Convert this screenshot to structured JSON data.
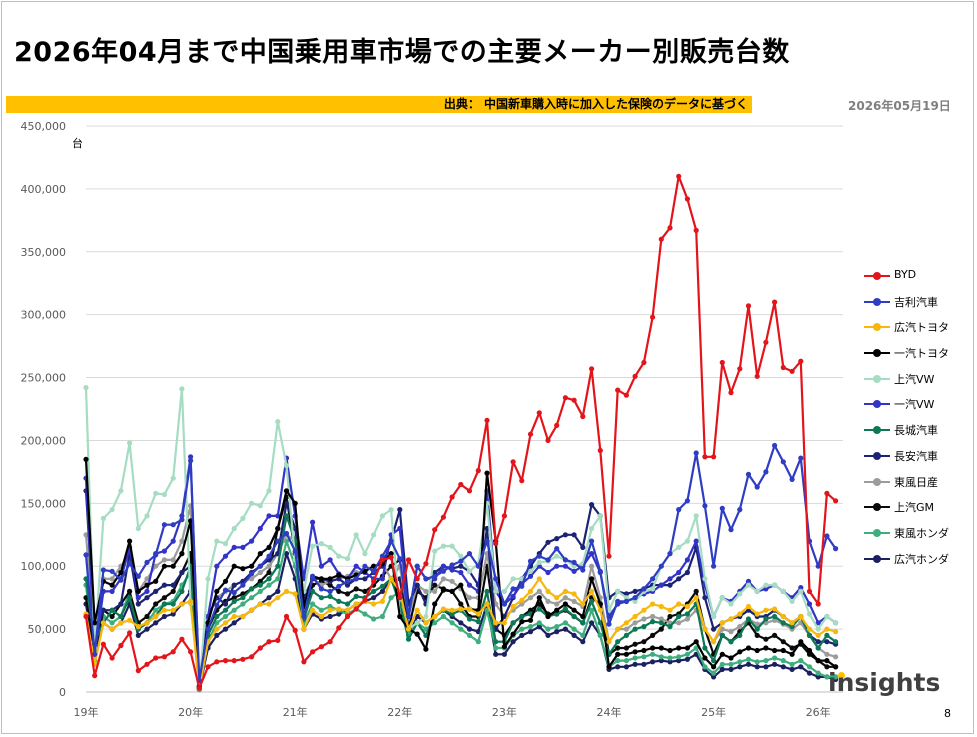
{
  "header": {
    "title": "2026年04月まで中国乗用車市場での主要メーカー別販売台数",
    "source": "出典： 中国新車購入時に加入した保険のデータに基づく",
    "date": "2026年05月19日",
    "page_number": "8"
  },
  "logo": {
    "text": "insights"
  },
  "chart_data": {
    "type": "line",
    "ylabel": "台",
    "ylim": [
      0,
      450000
    ],
    "yticks": [
      "0",
      "50,000",
      "100,000",
      "150,000",
      "200,000",
      "250,000",
      "300,000",
      "350,000",
      "400,000",
      "450,000"
    ],
    "xticks": [
      "19年",
      "20年",
      "21年",
      "22年",
      "23年",
      "24年",
      "25年",
      "26年"
    ],
    "x_start": "2019-01",
    "grid": "horizontal",
    "legend_position": "right",
    "series": [
      {
        "name": "BYD",
        "color": "#e3141a",
        "values": [
          60000,
          13000,
          38000,
          27000,
          37000,
          47000,
          17000,
          22000,
          27000,
          28000,
          32000,
          42000,
          32000,
          3000,
          20000,
          24000,
          25000,
          25000,
          26000,
          28000,
          35000,
          40000,
          41000,
          60000,
          49000,
          24000,
          32000,
          36000,
          40000,
          51000,
          60000,
          66000,
          73000,
          88000,
          105000,
          107000,
          75000,
          105000,
          90000,
          102000,
          129000,
          139000,
          155000,
          165000,
          160000,
          176000,
          216000,
          118000,
          140000,
          183000,
          168000,
          205000,
          222000,
          200000,
          212000,
          234000,
          232000,
          219000,
          257000,
          192000,
          108000,
          240000,
          236000,
          251000,
          262000,
          298000,
          360000,
          369000,
          410000,
          392000,
          367000,
          187000,
          187000,
          262000,
          238000,
          257000,
          307000,
          251000,
          278000,
          310000,
          258000,
          255000,
          263000,
          80000,
          70000,
          158000,
          152000
        ]
      },
      {
        "name": "吉利汽車",
        "color": "#2e3dc2",
        "values": [
          109000,
          30000,
          97000,
          96000,
          89000,
          102000,
          92000,
          103000,
          109000,
          133000,
          133000,
          137000,
          184000,
          9000,
          50000,
          69000,
          81000,
          79000,
          85000,
          94000,
          100000,
          108000,
          120000,
          126000,
          112000,
          60000,
          92000,
          82000,
          80000,
          84000,
          88000,
          90000,
          100000,
          96000,
          108000,
          120000,
          106000,
          60000,
          100000,
          90000,
          92000,
          96000,
          101000,
          104000,
          110000,
          100000,
          120000,
          90000,
          70000,
          82000,
          84000,
          104000,
          108000,
          105000,
          114000,
          105000,
          103000,
          97000,
          120000,
          96000,
          54000,
          72000,
          72000,
          75000,
          82000,
          90000,
          100000,
          110000,
          145000,
          152000,
          190000,
          148000,
          100000,
          146000,
          129000,
          145000,
          173000,
          163000,
          175000,
          196000,
          183000,
          169000,
          186000,
          120000,
          100000,
          124000,
          114000
        ]
      },
      {
        "name": "広汽トヨタ",
        "color": "#f7b80e",
        "values": [
          62000,
          22000,
          55000,
          50000,
          55000,
          57000,
          52000,
          55000,
          60000,
          65000,
          65000,
          70000,
          72000,
          3000,
          40000,
          50000,
          55000,
          60000,
          60000,
          65000,
          70000,
          70000,
          75000,
          80000,
          78000,
          50000,
          65000,
          60000,
          65000,
          66000,
          65000,
          70000,
          72000,
          70000,
          72000,
          90000,
          80000,
          50000,
          65000,
          55000,
          60000,
          66000,
          65000,
          66000,
          66000,
          62000,
          70000,
          55000,
          55000,
          68000,
          73000,
          80000,
          90000,
          80000,
          75000,
          80000,
          78000,
          70000,
          80000,
          65000,
          40000,
          50000,
          55000,
          60000,
          65000,
          70000,
          68000,
          65000,
          70000,
          68000,
          75000,
          50000,
          40000,
          55000,
          58000,
          62000,
          68000,
          62000,
          65000,
          66000,
          60000,
          55000,
          60000,
          50000,
          45000,
          50000,
          48000
        ]
      },
      {
        "name": "一汽トヨタ",
        "color": "#000000",
        "values": [
          185000,
          55000,
          88000,
          85000,
          95000,
          120000,
          80000,
          85000,
          88000,
          100000,
          100000,
          110000,
          136000,
          4000,
          55000,
          80000,
          88000,
          100000,
          98000,
          100000,
          110000,
          115000,
          130000,
          160000,
          150000,
          68000,
          92000,
          90000,
          90000,
          93000,
          90000,
          93000,
          96000,
          100000,
          102000,
          110000,
          60000,
          50000,
          46000,
          34000,
          70000,
          81000,
          80000,
          85000,
          66000,
          65000,
          174000,
          120000,
          36000,
          46000,
          56000,
          57000,
          75000,
          60000,
          65000,
          70000,
          65000,
          60000,
          90000,
          70000,
          20000,
          30000,
          30000,
          32000,
          33000,
          35000,
          35000,
          33000,
          35000,
          35000,
          40000,
          27000,
          20000,
          30000,
          27000,
          32000,
          35000,
          33000,
          35000,
          33000,
          33000,
          30000,
          40000,
          33000,
          25000,
          25000,
          20000
        ]
      },
      {
        "name": "上汽VW",
        "color": "#a6dcc2",
        "values": [
          242000,
          35000,
          138000,
          145000,
          160000,
          198000,
          130000,
          140000,
          158000,
          157000,
          170000,
          241000,
          70000,
          3000,
          90000,
          120000,
          118000,
          130000,
          138000,
          150000,
          148000,
          160000,
          215000,
          180000,
          105000,
          80000,
          116000,
          118000,
          115000,
          108000,
          106000,
          125000,
          110000,
          125000,
          140000,
          145000,
          60000,
          50000,
          55000,
          60000,
          112000,
          116000,
          116000,
          108000,
          96000,
          102000,
          150000,
          80000,
          80000,
          90000,
          90000,
          96000,
          103000,
          104000,
          108000,
          105000,
          100000,
          102000,
          130000,
          140000,
          65000,
          80000,
          75000,
          72000,
          80000,
          82000,
          100000,
          110000,
          115000,
          120000,
          140000,
          90000,
          60000,
          75000,
          70000,
          78000,
          85000,
          80000,
          85000,
          85000,
          80000,
          72000,
          80000,
          62000,
          50000,
          60000,
          55000
        ]
      },
      {
        "name": "一汽VW",
        "color": "#3333c8",
        "values": [
          170000,
          30000,
          80000,
          80000,
          90000,
          115000,
          75000,
          80000,
          110000,
          112000,
          120000,
          140000,
          187000,
          4000,
          60000,
          100000,
          108000,
          115000,
          115000,
          120000,
          130000,
          140000,
          140000,
          186000,
          140000,
          90000,
          135000,
          100000,
          105000,
          94000,
          90000,
          100000,
          95000,
          90000,
          90000,
          125000,
          130000,
          60000,
          100000,
          90000,
          90000,
          100000,
          97000,
          95000,
          85000,
          80000,
          160000,
          80000,
          70000,
          76000,
          86000,
          92000,
          100000,
          95000,
          100000,
          100000,
          96000,
          100000,
          110000,
          95000,
          60000,
          70000,
          72000,
          75000,
          78000,
          80000,
          85000,
          90000,
          95000,
          105000,
          120000,
          85000,
          60000,
          75000,
          72000,
          80000,
          88000,
          80000,
          82000,
          85000,
          80000,
          75000,
          83000,
          70000,
          55000,
          60000,
          55000
        ]
      },
      {
        "name": "長城汽車",
        "color": "#0d7855",
        "values": [
          90000,
          40000,
          55000,
          65000,
          60000,
          75000,
          50000,
          55000,
          60000,
          70000,
          70000,
          80000,
          100000,
          5000,
          45000,
          60000,
          65000,
          72000,
          75000,
          82000,
          85000,
          90000,
          100000,
          140000,
          120000,
          58000,
          80000,
          75000,
          76000,
          72000,
          70000,
          76000,
          75000,
          80000,
          84000,
          90000,
          70000,
          42000,
          55000,
          45000,
          60000,
          65000,
          62000,
          65000,
          58000,
          56000,
          80000,
          40000,
          40000,
          55000,
          60000,
          62000,
          66000,
          60000,
          62000,
          66000,
          60000,
          55000,
          72000,
          55000,
          30000,
          40000,
          45000,
          50000,
          52000,
          56000,
          55000,
          52000,
          60000,
          62000,
          70000,
          35000,
          25000,
          45000,
          40000,
          45000,
          58000,
          50000,
          58000,
          60000,
          55000,
          52000,
          60000,
          45000,
          35000,
          45000,
          40000
        ]
      },
      {
        "name": "長安汽車",
        "color": "#1c2373",
        "values": [
          160000,
          45000,
          65000,
          65000,
          70000,
          110000,
          70000,
          75000,
          80000,
          85000,
          85000,
          95000,
          100000,
          8000,
          60000,
          75000,
          70000,
          85000,
          88000,
          95000,
          100000,
          105000,
          110000,
          150000,
          130000,
          75000,
          90000,
          90000,
          88000,
          90000,
          85000,
          90000,
          90000,
          95000,
          100000,
          120000,
          145000,
          70000,
          85000,
          70000,
          95000,
          100000,
          98000,
          100000,
          96000,
          85000,
          130000,
          50000,
          60000,
          75000,
          90000,
          100000,
          110000,
          119000,
          122000,
          125000,
          125000,
          115000,
          149000,
          140000,
          75000,
          80000,
          78000,
          80000,
          82000,
          85000,
          85000,
          85000,
          90000,
          95000,
          115000,
          75000,
          50000,
          55000,
          58000,
          60000,
          65000,
          60000,
          60000,
          65000,
          60000,
          55000,
          60000,
          45000,
          40000,
          40000,
          38000
        ]
      },
      {
        "name": "東風日産",
        "color": "#9c9c9c",
        "values": [
          125000,
          40000,
          90000,
          90000,
          100000,
          110000,
          80000,
          90000,
          100000,
          105000,
          105000,
          120000,
          148000,
          5000,
          60000,
          75000,
          80000,
          85000,
          88000,
          90000,
          95000,
          100000,
          110000,
          125000,
          120000,
          68000,
          90000,
          85000,
          88000,
          90000,
          92000,
          95000,
          96000,
          100000,
          102000,
          90000,
          100000,
          60000,
          85000,
          80000,
          80000,
          90000,
          88000,
          82000,
          75000,
          75000,
          110000,
          70000,
          60000,
          65000,
          70000,
          75000,
          80000,
          72000,
          70000,
          75000,
          72000,
          68000,
          100000,
          75000,
          40000,
          50000,
          50000,
          55000,
          58000,
          60000,
          58000,
          55000,
          55000,
          58000,
          65000,
          50000,
          40000,
          50000,
          48000,
          52000,
          58000,
          54000,
          55000,
          57000,
          54000,
          50000,
          55000,
          45000,
          35000,
          30000,
          28000
        ]
      },
      {
        "name": "上汽GM",
        "color": "#0a0a0a",
        "values": [
          75000,
          30000,
          65000,
          60000,
          70000,
          80000,
          55000,
          60000,
          70000,
          75000,
          80000,
          95000,
          110000,
          3000,
          50000,
          65000,
          72000,
          75000,
          78000,
          82000,
          88000,
          95000,
          130000,
          155000,
          110000,
          60000,
          85000,
          88000,
          85000,
          80000,
          78000,
          82000,
          80000,
          85000,
          92000,
          100000,
          105000,
          50000,
          80000,
          75000,
          85000,
          82000,
          80000,
          70000,
          60000,
          60000,
          100000,
          50000,
          45000,
          55000,
          60000,
          65000,
          70000,
          62000,
          62000,
          65000,
          60000,
          55000,
          75000,
          70000,
          30000,
          35000,
          35000,
          38000,
          40000,
          45000,
          50000,
          60000,
          62000,
          70000,
          80000,
          50000,
          30000,
          45000,
          40000,
          48000,
          55000,
          45000,
          42000,
          45000,
          40000,
          35000,
          38000,
          30000,
          25000,
          20000,
          20000
        ]
      },
      {
        "name": "東風ホンダ",
        "color": "#3eae7e",
        "values": [
          85000,
          25000,
          60000,
          55000,
          60000,
          80000,
          50000,
          55000,
          65000,
          70000,
          72000,
          85000,
          95000,
          2000,
          40000,
          55000,
          60000,
          65000,
          70000,
          75000,
          80000,
          85000,
          90000,
          120000,
          100000,
          55000,
          70000,
          65000,
          68000,
          65000,
          62000,
          66000,
          62000,
          58000,
          60000,
          75000,
          80000,
          45000,
          55000,
          50000,
          55000,
          60000,
          55000,
          50000,
          45000,
          40000,
          65000,
          35000,
          35000,
          45000,
          50000,
          52000,
          55000,
          50000,
          52000,
          55000,
          50000,
          45000,
          65000,
          45000,
          20000,
          25000,
          25000,
          27000,
          28000,
          30000,
          28000,
          27000,
          28000,
          30000,
          35000,
          20000,
          15000,
          22000,
          22000,
          24000,
          26000,
          24000,
          25000,
          27000,
          25000,
          22000,
          25000,
          20000,
          15000,
          12000,
          12000
        ]
      },
      {
        "name": "広汽ホンダ",
        "color": "#1c1f60",
        "values": [
          70000,
          25000,
          55000,
          50000,
          55000,
          70000,
          45000,
          50000,
          55000,
          60000,
          62000,
          70000,
          80000,
          2000,
          35000,
          45000,
          50000,
          55000,
          60000,
          65000,
          70000,
          75000,
          80000,
          110000,
          90000,
          50000,
          62000,
          58000,
          60000,
          62000,
          65000,
          70000,
          72000,
          75000,
          80000,
          90000,
          90000,
          45000,
          60000,
          55000,
          60000,
          65000,
          60000,
          55000,
          50000,
          48000,
          70000,
          30000,
          30000,
          40000,
          45000,
          48000,
          52000,
          45000,
          48000,
          50000,
          45000,
          40000,
          55000,
          45000,
          18000,
          20000,
          20000,
          22000,
          22000,
          24000,
          25000,
          24000,
          25000,
          26000,
          30000,
          18000,
          12000,
          18000,
          18000,
          20000,
          22000,
          20000,
          20000,
          22000,
          20000,
          18000,
          20000,
          15000,
          12000,
          12000,
          10000
        ]
      }
    ]
  }
}
